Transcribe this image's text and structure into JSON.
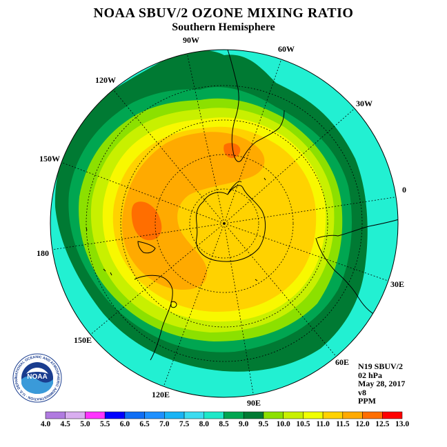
{
  "header": {
    "title": "NOAA SBUV/2 OZONE MIXING RATIO",
    "subtitle": "Southern Hemisphere"
  },
  "map": {
    "longitude_labels": [
      {
        "text": "90W"
      },
      {
        "text": "60W"
      },
      {
        "text": "30W"
      },
      {
        "text": "0"
      },
      {
        "text": "30E"
      },
      {
        "text": "60E"
      },
      {
        "text": "90E"
      },
      {
        "text": "120E"
      },
      {
        "text": "150E"
      },
      {
        "text": "180"
      },
      {
        "text": "150W"
      },
      {
        "text": "120W"
      }
    ]
  },
  "info": {
    "satellite": "N19 SBUV/2",
    "pressure": "02 hPa",
    "date": "May 28, 2017",
    "version": "v8",
    "units": "PPM"
  },
  "colorbar": {
    "ticks": [
      "4.0",
      "4.5",
      "5.0",
      "5.5",
      "6.0",
      "6.5",
      "7.0",
      "7.5",
      "8.0",
      "8.5",
      "9.0",
      "9.5",
      "10.0",
      "10.5",
      "11.0",
      "11.5",
      "12.0",
      "12.5",
      "13.0"
    ],
    "colors": [
      "#b07ae0",
      "#d9aef0",
      "#ff33ff",
      "#0000ff",
      "#0f6ef5",
      "#1e90ff",
      "#19b4f5",
      "#3cdcf0",
      "#1fe8c8",
      "#00a651",
      "#007a33",
      "#8ce000",
      "#c8f000",
      "#f0ff00",
      "#ffd200",
      "#ffaa00",
      "#ff6e00",
      "#ff0000",
      "#8b5a3c"
    ]
  },
  "logo": {
    "text": "NOAA",
    "ring_text": "NATIONAL OCEANIC AND ATMOSPHERIC ADMINISTRATION · U.S. DEPARTMENT OF COMMERCE"
  },
  "palette": {
    "aqua": "#22f0d2",
    "blue": "#2fb6f5",
    "darkgreen": "#007a33",
    "green": "#00a651",
    "lime": "#8ce000",
    "chartreuse": "#c8f000",
    "yellow": "#f8f800",
    "gold": "#ffd200",
    "orange": "#ffaa00",
    "redorange": "#ff6e00"
  }
}
